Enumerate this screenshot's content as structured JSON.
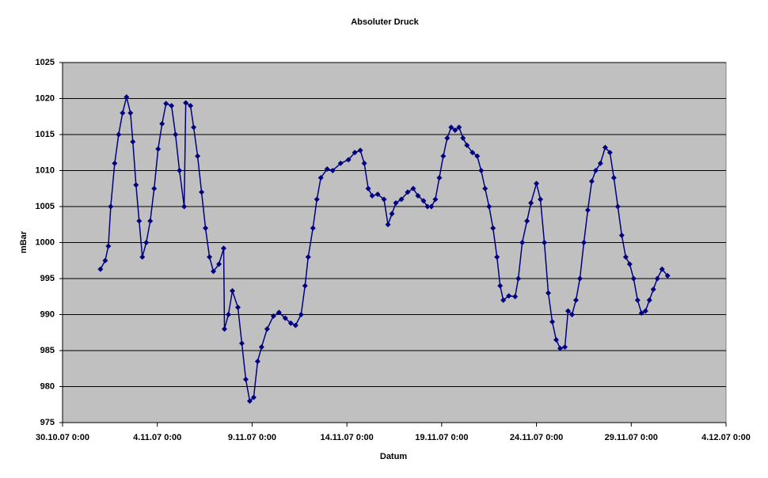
{
  "chart_data": {
    "type": "line",
    "title": "Absoluter Druck",
    "x_label": "Datum",
    "y_label": "mBar",
    "color": "#000080",
    "marker": "diamond",
    "grid": true,
    "background": "#c0c0c0",
    "xlim": [
      "30.10.07 0:00",
      "4.12.07 0:00"
    ],
    "xticks": [
      "30.10.07 0:00",
      "4.11.07 0:00",
      "9.11.07 0:00",
      "14.11.07 0:00",
      "19.11.07 0:00",
      "24.11.07 0:00",
      "29.11.07 0:00",
      "4.12.07 0:00"
    ],
    "ylim": [
      975,
      1025
    ],
    "yticks": [
      975,
      980,
      985,
      990,
      995,
      1000,
      1005,
      1010,
      1015,
      1020,
      1025
    ],
    "x": [
      "1.11.07 0:00",
      "1.11.07 6:00",
      "1.11.07 10:00",
      "1.11.07 13:00",
      "1.11.07 18:00",
      "1.11.07 23:00",
      "2.11.07 4:00",
      "2.11.07 9:00",
      "2.11.07 14:00",
      "2.11.07 17:00",
      "2.11.07 21:00",
      "3.11.07 1:00",
      "3.11.07 5:00",
      "3.11.07 10:00",
      "3.11.07 15:00",
      "3.11.07 20:00",
      "4.11.07 1:00",
      "4.11.07 6:00",
      "4.11.07 11:00",
      "4.11.07 18:00",
      "4.11.07 23:00",
      "5.11.07 4:00",
      "5.11.07 10:00",
      "5.11.07 12:00",
      "5.11.07 18:00",
      "5.11.07 22:00",
      "6.11.07 3:00",
      "6.11.07 8:00",
      "6.11.07 13:00",
      "6.11.07 18:00",
      "6.11.07 23:00",
      "7.11.07 6:00",
      "7.11.07 12:00",
      "7.11.07 13:00",
      "7.11.07 18:00",
      "7.11.07 23:00",
      "8.11.07 6:00",
      "8.11.07 11:00",
      "8.11.07 16:00",
      "8.11.07 21:00",
      "9.11.07 2:00",
      "9.11.07 7:00",
      "9.11.07 12:00",
      "9.11.07 19:00",
      "10.11.07 3:00",
      "10.11.07 10:00",
      "10.11.07 18:00",
      "11.11.07 1:00",
      "11.11.07 7:00",
      "11.11.07 14:00",
      "11.11.07 19:00",
      "11.11.07 23:00",
      "12.11.07 5:00",
      "12.11.07 10:00",
      "12.11.07 15:00",
      "12.11.07 23:00",
      "13.11.07 6:00",
      "13.11.07 16:00",
      "14.11.07 2:00",
      "14.11.07 10:00",
      "14.11.07 17:00",
      "14.11.07 22:00",
      "15.11.07 3:00",
      "15.11.07 8:00",
      "15.11.07 15:00",
      "15.11.07 23:00",
      "16.11.07 4:00",
      "16.11.07 9:00",
      "16.11.07 14:00",
      "16.11.07 21:00",
      "17.11.07 5:00",
      "17.11.07 12:00",
      "17.11.07 18:00",
      "18.11.07 1:00",
      "18.11.07 6:00",
      "18.11.07 11:00",
      "18.11.07 16:00",
      "18.11.07 21:00",
      "19.11.07 2:00",
      "19.11.07 7:00",
      "19.11.07 12:00",
      "19.11.07 17:00",
      "19.11.07 22:00",
      "20.11.07 3:00",
      "20.11.07 8:00",
      "20.11.07 15:00",
      "20.11.07 21:00",
      "21.11.07 2:00",
      "21.11.07 7:00",
      "21.11.07 12:00",
      "21.11.07 17:00",
      "21.11.07 22:00",
      "22.11.07 2:00",
      "22.11.07 6:00",
      "22.11.07 13:00",
      "22.11.07 21:00",
      "23.11.07 1:00",
      "23.11.07 6:00",
      "23.11.07 12:00",
      "23.11.07 17:00",
      "24.11.07 0:00",
      "24.11.07 5:00",
      "24.11.07 10:00",
      "24.11.07 15:00",
      "24.11.07 20:00",
      "25.11.07 1:00",
      "25.11.07 6:00",
      "25.11.07 12:00",
      "25.11.07 16:00",
      "25.11.07 21:00",
      "26.11.07 2:00",
      "26.11.07 7:00",
      "26.11.07 12:00",
      "26.11.07 17:00",
      "26.11.07 22:00",
      "27.11.07 3:00",
      "27.11.07 9:00",
      "27.11.07 15:00",
      "27.11.07 21:00",
      "28.11.07 2:00",
      "28.11.07 7:00",
      "28.11.07 12:00",
      "28.11.07 17:00",
      "28.11.07 22:00",
      "29.11.07 3:00",
      "29.11.07 8:00",
      "29.11.07 13:00",
      "29.11.07 18:00",
      "29.11.07 23:00",
      "30.11.07 4:00",
      "30.11.07 9:00",
      "30.11.07 15:00",
      "30.11.07 22:00"
    ],
    "values": [
      996.3,
      997.5,
      999.5,
      1005,
      1011,
      1015,
      1018,
      1020.2,
      1018,
      1014,
      1008,
      1003,
      998,
      1000,
      1003,
      1007.5,
      1013,
      1016.5,
      1019.3,
      1019,
      1015,
      1010,
      1005,
      1019.4,
      1019,
      1016,
      1012,
      1007,
      1002,
      998,
      996,
      997,
      999.2,
      988,
      990,
      993.3,
      991,
      986,
      981,
      978,
      978.5,
      983.5,
      985.5,
      988,
      989.8,
      990.3,
      989.5,
      988.8,
      988.5,
      990,
      994,
      998,
      1002,
      1006,
      1009,
      1010.2,
      1010,
      1011,
      1011.5,
      1012.5,
      1012.8,
      1011,
      1007.5,
      1006.5,
      1006.7,
      1006,
      1002.5,
      1004,
      1005.5,
      1006,
      1007,
      1007.5,
      1006.5,
      1005.8,
      1005,
      1005,
      1006,
      1009,
      1012,
      1014.5,
      1016,
      1015.6,
      1016,
      1014.5,
      1013.5,
      1012.5,
      1012,
      1010,
      1007.5,
      1005,
      1002,
      998,
      994,
      992,
      992.6,
      992.5,
      995,
      1000,
      1003,
      1005.5,
      1008.2,
      1006,
      1000,
      993,
      989,
      986.5,
      985.3,
      985.5,
      990.5,
      990,
      992,
      995,
      1000,
      1004.5,
      1008.5,
      1010,
      1011,
      1013.2,
      1012.5,
      1009,
      1005,
      1001,
      998,
      997,
      995,
      992,
      990.2,
      990.5,
      992,
      993.5,
      995,
      996.3,
      995.4
    ]
  }
}
